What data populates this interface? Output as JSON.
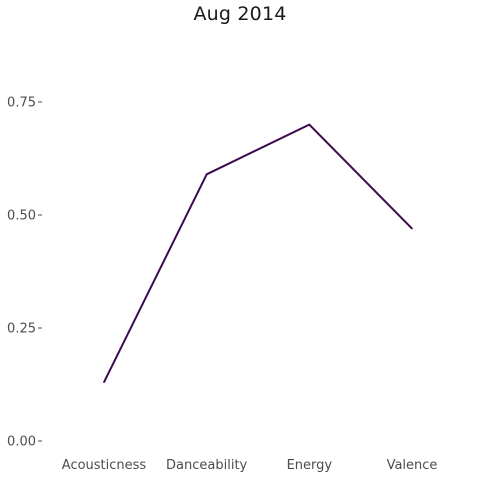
{
  "chart_data": {
    "type": "line",
    "title": "Aug 2014",
    "xlabel": "",
    "ylabel": "",
    "categories": [
      "Acousticness",
      "Danceability",
      "Energy",
      "Valence"
    ],
    "series": [
      {
        "values": [
          0.13,
          0.59,
          0.7,
          0.47
        ]
      }
    ],
    "ylim": [
      0,
      0.75
    ],
    "yticks": [
      0.0,
      0.25,
      0.5,
      0.75
    ],
    "ytick_labels": [
      "0.00",
      "0.25",
      "0.50",
      "0.75"
    ],
    "grid": false,
    "legend": "none",
    "line_color": "#3d0a4f"
  }
}
